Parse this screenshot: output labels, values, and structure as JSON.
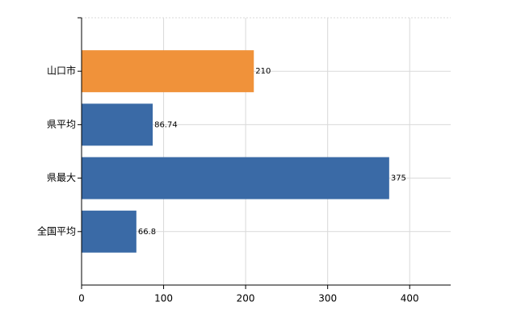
{
  "chart_data": {
    "type": "hbar",
    "categories": [
      "山口市",
      "県平均",
      "県最大",
      "全国平均"
    ],
    "values": [
      210,
      86.74,
      375,
      66.8
    ],
    "colors": [
      "#f0923a",
      "#3a6aa6",
      "#3a6aa6",
      "#3a6aa6"
    ],
    "xlim": [
      0,
      450
    ],
    "xticks": [
      0,
      100,
      200,
      300,
      400
    ],
    "grid": true
  }
}
